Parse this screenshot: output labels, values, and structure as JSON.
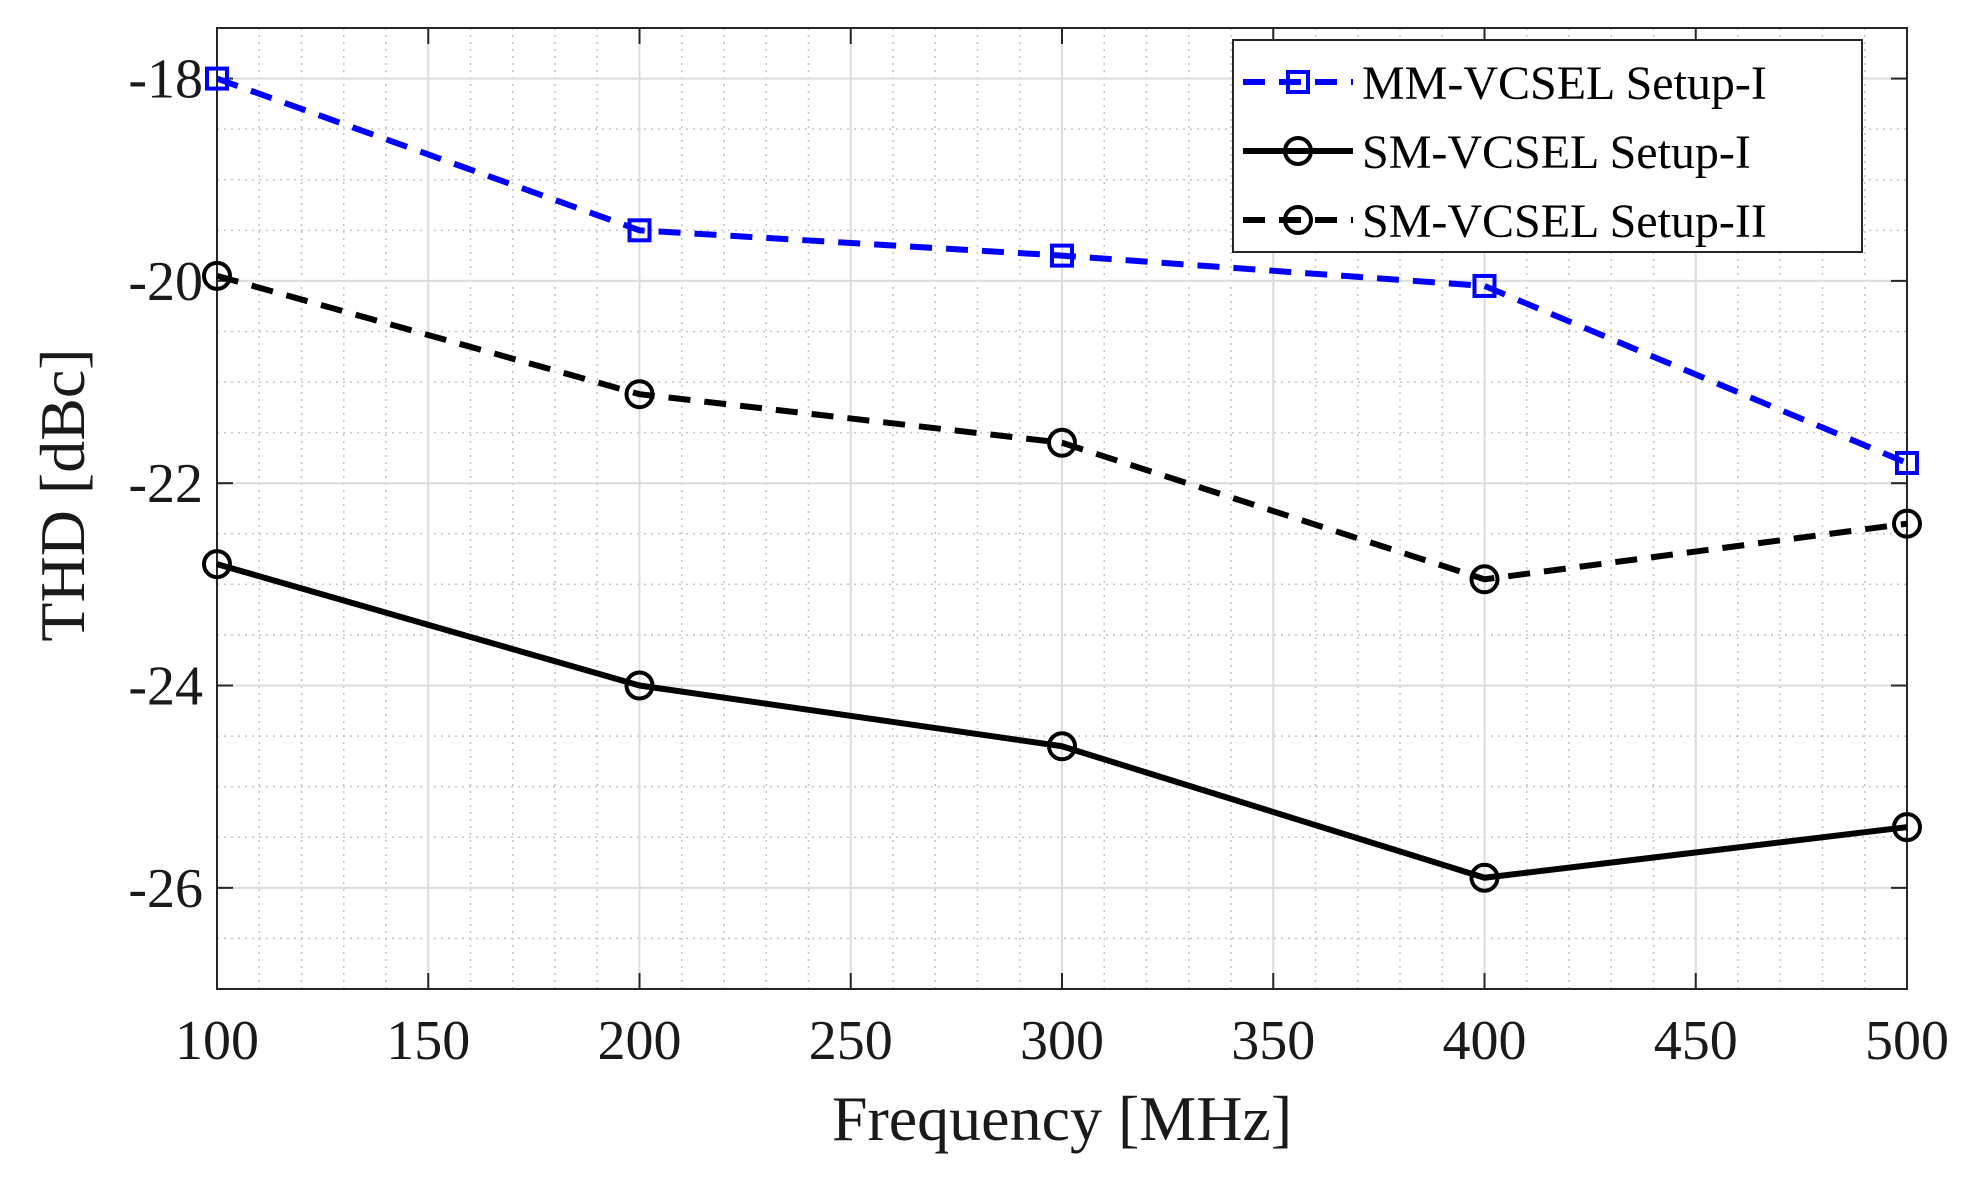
{
  "chart_data": {
    "type": "line",
    "xlabel": "Frequency [MHz]",
    "ylabel": "THD [dBc]",
    "xlim": [
      100,
      500
    ],
    "ylim": [
      -27,
      -17.5
    ],
    "xticks": [
      100,
      150,
      200,
      250,
      300,
      350,
      400,
      450,
      500
    ],
    "xtick_labels": [
      "100",
      "150",
      "200",
      "250",
      "300",
      "350",
      "400",
      "450",
      "500"
    ],
    "yticks": [
      -18,
      -20,
      -22,
      -24,
      -26
    ],
    "ytick_labels": [
      "-18",
      "-20",
      "-22",
      "-24",
      "-26"
    ],
    "x_minor_step": 10,
    "y_minor_step": 0.5,
    "grid": true,
    "legend_position": "top-right",
    "x": [
      100,
      200,
      300,
      400,
      500
    ],
    "series": [
      {
        "name": "MM-VCSEL Setup-I",
        "values": [
          -18.0,
          -19.5,
          -19.75,
          -20.05,
          -21.8
        ],
        "color": "#0000ff",
        "line": "dashed",
        "marker": "square"
      },
      {
        "name": "SM-VCSEL Setup-I",
        "values": [
          -22.8,
          -24.0,
          -24.6,
          -25.9,
          -25.4
        ],
        "color": "#000000",
        "line": "solid",
        "marker": "circle"
      },
      {
        "name": "SM-VCSEL Setup-II",
        "values": [
          -19.95,
          -21.12,
          -21.6,
          -22.95,
          -22.4
        ],
        "color": "#000000",
        "line": "dashed",
        "marker": "circle"
      }
    ]
  }
}
